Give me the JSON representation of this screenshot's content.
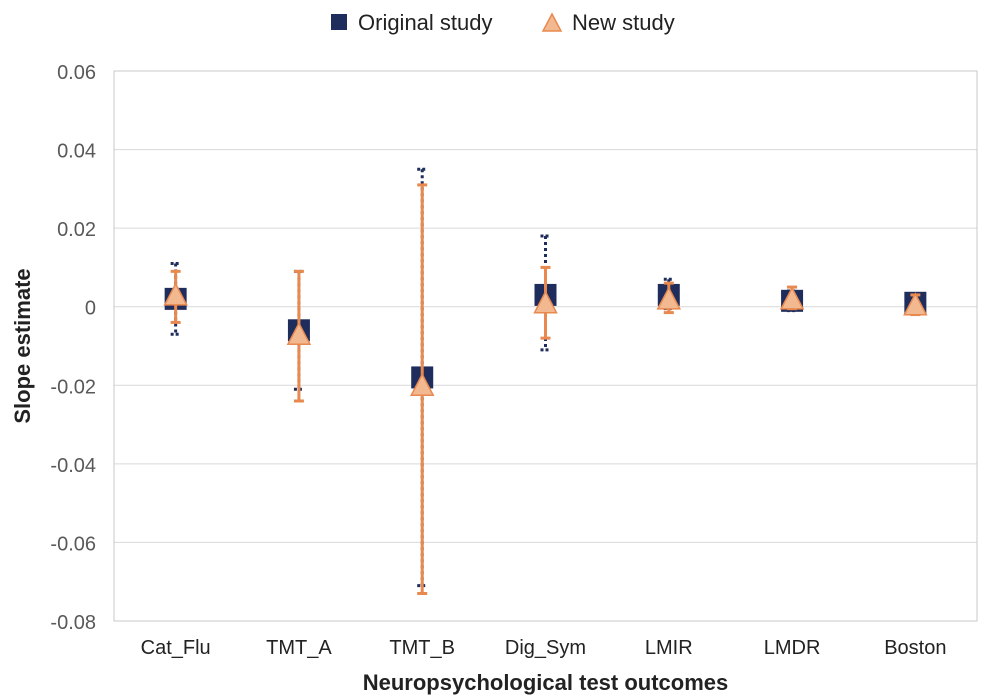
{
  "chart_data": {
    "type": "scatter",
    "title": "",
    "xlabel": "Neuropsychological test outcomes",
    "ylabel": "Slope estimate",
    "ylim": [
      -0.08,
      0.06
    ],
    "yticks": [
      0.06,
      0.04,
      0.02,
      0,
      -0.02,
      -0.04,
      -0.06,
      -0.08
    ],
    "ytick_labels": [
      "0.06",
      "0.04",
      "0.02",
      "0",
      "-0.02",
      "-0.04",
      "-0.06",
      "-0.08"
    ],
    "grid": true,
    "legend_position": "top",
    "categories": [
      "Cat_Flu",
      "TMT_A",
      "TMT_B",
      "Dig_Sym",
      "LMIR",
      "LMDR",
      "Boston"
    ],
    "series": [
      {
        "name": "Original study",
        "marker": "square",
        "color": "#1f2d5c",
        "error_style": "dotted",
        "values": [
          0.002,
          -0.006,
          -0.018,
          0.003,
          0.003,
          0.0015,
          0.001
        ],
        "lower": [
          -0.007,
          -0.021,
          -0.071,
          -0.011,
          -0.0005,
          -0.001,
          -0.0005
        ],
        "upper": [
          0.011,
          0.009,
          0.035,
          0.018,
          0.007,
          0.004,
          0.003
        ]
      },
      {
        "name": "New study",
        "marker": "triangle",
        "color": "#e8894f",
        "fill": "#f2b88f",
        "error_style": "solid",
        "values": [
          0.003,
          -0.007,
          -0.02,
          0.001,
          0.002,
          0.002,
          0.0005
        ],
        "lower": [
          -0.004,
          -0.024,
          -0.073,
          -0.008,
          -0.0015,
          -0.0005,
          -0.002
        ],
        "upper": [
          0.009,
          0.009,
          0.031,
          0.01,
          0.006,
          0.005,
          0.003
        ]
      }
    ]
  }
}
